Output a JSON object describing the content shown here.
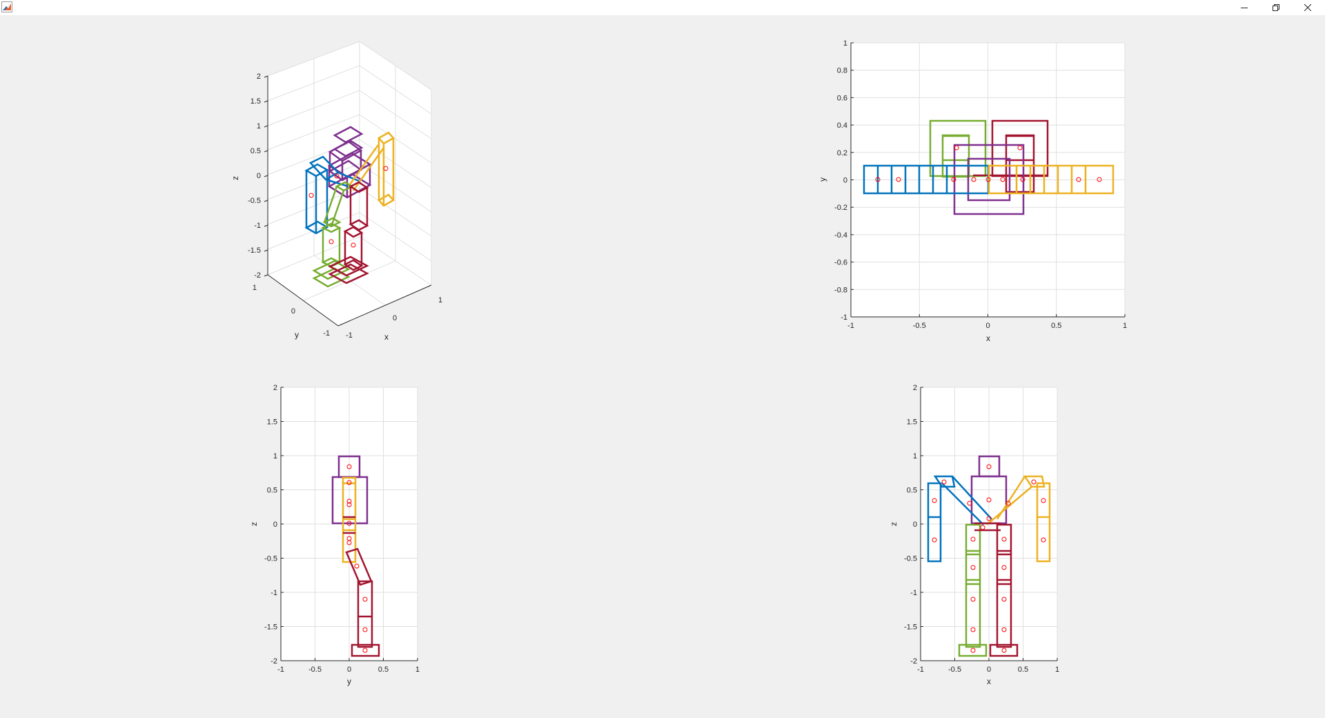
{
  "window": {
    "title": ""
  },
  "controls": {
    "minimize": "minimize-icon",
    "restore": "restore-icon",
    "close": "close-icon"
  },
  "colors": {
    "blue": "#0072BD",
    "orange": "#EDB120",
    "purple": "#7E2F8E",
    "green": "#77AC30",
    "red": "#A2142F",
    "marker": "#FF0000",
    "grid": "#DFDFDF",
    "axes_bg": "#FFFFFF",
    "figure_bg": "#F0F0F0"
  },
  "plots": {
    "p3d": {
      "xlabel": "x",
      "ylabel": "y",
      "zlabel": "z",
      "zticks": [
        "2",
        "1.5",
        "1",
        "0.5",
        "0",
        "-0.5",
        "-1",
        "-1.5",
        "-2"
      ],
      "yticks": [
        "1",
        "0",
        "-1"
      ],
      "xticks": [
        "-1",
        "0",
        "1"
      ]
    },
    "top": {
      "xlabel": "x",
      "ylabel": "y",
      "xticks": [
        "-1",
        "-0.5",
        "0",
        "0.5",
        "1"
      ],
      "yticks": [
        "1",
        "0.8",
        "0.6",
        "0.4",
        "0.2",
        "0",
        "-0.2",
        "-0.4",
        "-0.6",
        "-0.8",
        "-1"
      ]
    },
    "side": {
      "xlabel": "y",
      "ylabel": "z",
      "xticks": [
        "-1",
        "-0.5",
        "0",
        "0.5",
        "1"
      ],
      "yticks": [
        "2",
        "1.5",
        "1",
        "0.5",
        "0",
        "-0.5",
        "-1",
        "-1.5",
        "-2"
      ]
    },
    "front": {
      "xlabel": "x",
      "ylabel": "z",
      "xticks": [
        "-1",
        "-0.5",
        "0",
        "0.5",
        "1"
      ],
      "yticks": [
        "2",
        "1.5",
        "1",
        "0.5",
        "0",
        "-0.5",
        "-1",
        "-1.5",
        "-2"
      ]
    }
  }
}
